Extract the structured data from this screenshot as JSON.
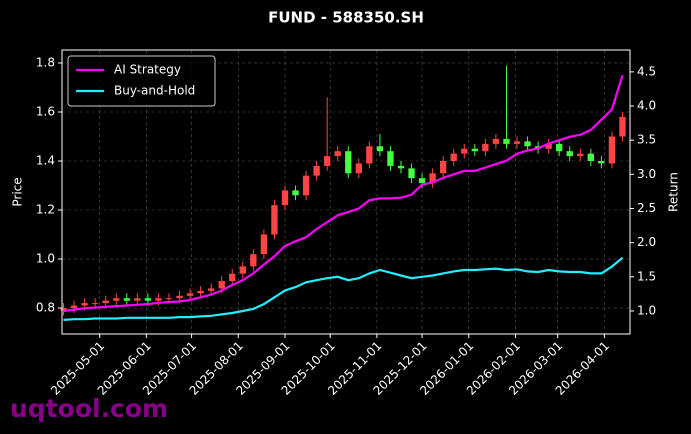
{
  "chart_data": {
    "type": "candlestick",
    "title": "FUND - 588350.SH",
    "ylabel": "Price",
    "y2label": "Return",
    "watermark": "uqtool.com",
    "up_color": "#ff4444",
    "down_color": "#44ff44",
    "grid": true,
    "legend": "upper left",
    "x": [
      "2025-04-07",
      "2025-04-14",
      "2025-04-21",
      "2025-04-28",
      "2025-05-05",
      "2025-05-12",
      "2025-05-19",
      "2025-05-26",
      "2025-06-02",
      "2025-06-09",
      "2025-06-16",
      "2025-06-23",
      "2025-06-30",
      "2025-07-07",
      "2025-07-14",
      "2025-07-21",
      "2025-07-28",
      "2025-08-04",
      "2025-08-11",
      "2025-08-18",
      "2025-08-25",
      "2025-09-01",
      "2025-09-08",
      "2025-09-15",
      "2025-09-22",
      "2025-09-29",
      "2025-10-06",
      "2025-10-13",
      "2025-10-20",
      "2025-10-27",
      "2025-11-03",
      "2025-11-10",
      "2025-11-17",
      "2025-11-24",
      "2025-12-01",
      "2025-12-08",
      "2025-12-15",
      "2025-12-22",
      "2025-12-29",
      "2026-01-05",
      "2026-01-12",
      "2026-01-19",
      "2026-01-26",
      "2026-02-02",
      "2026-02-09",
      "2026-02-16",
      "2026-02-23",
      "2026-03-02",
      "2026-03-09",
      "2026-03-16",
      "2026-03-23",
      "2026-03-30",
      "2026-04-06",
      "2026-04-13"
    ],
    "open": [
      0.79,
      0.8,
      0.81,
      0.82,
      0.82,
      0.83,
      0.84,
      0.83,
      0.84,
      0.83,
      0.84,
      0.84,
      0.85,
      0.86,
      0.87,
      0.88,
      0.91,
      0.94,
      0.97,
      1.02,
      1.1,
      1.22,
      1.28,
      1.26,
      1.34,
      1.38,
      1.42,
      1.44,
      1.35,
      1.39,
      1.46,
      1.44,
      1.38,
      1.37,
      1.33,
      1.31,
      1.35,
      1.4,
      1.43,
      1.45,
      1.44,
      1.47,
      1.49,
      1.47,
      1.48,
      1.46,
      1.45,
      1.47,
      1.44,
      1.42,
      1.43,
      1.4,
      1.39,
      1.5
    ],
    "close": [
      0.8,
      0.81,
      0.82,
      0.82,
      0.83,
      0.84,
      0.83,
      0.84,
      0.83,
      0.84,
      0.84,
      0.85,
      0.86,
      0.87,
      0.88,
      0.91,
      0.94,
      0.97,
      1.02,
      1.1,
      1.22,
      1.28,
      1.26,
      1.34,
      1.38,
      1.42,
      1.44,
      1.35,
      1.39,
      1.46,
      1.44,
      1.38,
      1.37,
      1.33,
      1.31,
      1.35,
      1.4,
      1.43,
      1.45,
      1.44,
      1.47,
      1.49,
      1.47,
      1.48,
      1.46,
      1.45,
      1.47,
      1.44,
      1.42,
      1.43,
      1.4,
      1.39,
      1.5,
      1.58
    ],
    "high": [
      0.82,
      0.83,
      0.84,
      0.84,
      0.85,
      0.86,
      0.86,
      0.86,
      0.86,
      0.86,
      0.86,
      0.87,
      0.88,
      0.89,
      0.9,
      0.93,
      0.96,
      0.99,
      1.04,
      1.12,
      1.24,
      1.3,
      1.3,
      1.36,
      1.4,
      1.66,
      1.46,
      1.46,
      1.41,
      1.48,
      1.51,
      1.46,
      1.4,
      1.39,
      1.35,
      1.37,
      1.42,
      1.45,
      1.47,
      1.47,
      1.49,
      1.51,
      1.79,
      1.5,
      1.5,
      1.48,
      1.49,
      1.49,
      1.46,
      1.45,
      1.45,
      1.42,
      1.52,
      1.6
    ],
    "low": [
      0.77,
      0.78,
      0.79,
      0.8,
      0.8,
      0.81,
      0.81,
      0.81,
      0.81,
      0.81,
      0.82,
      0.82,
      0.83,
      0.84,
      0.85,
      0.86,
      0.89,
      0.92,
      0.95,
      1.0,
      1.08,
      1.2,
      1.24,
      1.24,
      1.32,
      1.36,
      1.4,
      1.33,
      1.33,
      1.37,
      1.42,
      1.36,
      1.35,
      1.31,
      1.29,
      1.29,
      1.33,
      1.38,
      1.41,
      1.42,
      1.42,
      1.45,
      1.45,
      1.45,
      1.44,
      1.43,
      1.43,
      1.42,
      1.4,
      1.4,
      1.38,
      1.37,
      1.37,
      1.48
    ],
    "series": [
      {
        "name": "AI Strategy",
        "color": "#ff00ff",
        "axis": "y2",
        "values": [
          1.0,
          1.02,
          1.04,
          1.05,
          1.06,
          1.07,
          1.08,
          1.09,
          1.1,
          1.12,
          1.13,
          1.14,
          1.16,
          1.2,
          1.24,
          1.3,
          1.38,
          1.45,
          1.55,
          1.68,
          1.8,
          1.95,
          2.02,
          2.08,
          2.2,
          2.3,
          2.4,
          2.45,
          2.5,
          2.62,
          2.65,
          2.65,
          2.66,
          2.7,
          2.85,
          2.88,
          2.95,
          3.0,
          3.05,
          3.05,
          3.1,
          3.15,
          3.2,
          3.3,
          3.35,
          3.38,
          3.45,
          3.5,
          3.55,
          3.58,
          3.65,
          3.8,
          3.95,
          4.45
        ]
      },
      {
        "name": "Buy-and-Hold",
        "color": "#22eeff",
        "axis": "y2",
        "values": [
          0.87,
          0.88,
          0.88,
          0.89,
          0.89,
          0.89,
          0.9,
          0.9,
          0.9,
          0.9,
          0.9,
          0.91,
          0.91,
          0.92,
          0.93,
          0.95,
          0.97,
          1.0,
          1.03,
          1.1,
          1.2,
          1.3,
          1.35,
          1.42,
          1.45,
          1.48,
          1.5,
          1.45,
          1.48,
          1.55,
          1.6,
          1.56,
          1.52,
          1.48,
          1.5,
          1.52,
          1.55,
          1.58,
          1.6,
          1.6,
          1.61,
          1.62,
          1.6,
          1.61,
          1.58,
          1.57,
          1.6,
          1.58,
          1.57,
          1.57,
          1.55,
          1.55,
          1.65,
          1.78
        ]
      }
    ],
    "xlim": [
      "2025-04-06",
      "2026-04-18"
    ],
    "xticks": [
      "2025-05-01",
      "2025-06-01",
      "2025-07-01",
      "2025-08-01",
      "2025-09-01",
      "2025-10-01",
      "2025-11-01",
      "2025-12-01",
      "2026-01-01",
      "2026-02-01",
      "2026-03-01",
      "2026-04-01"
    ],
    "ylim": [
      0.694,
      1.853
    ],
    "yticks": [
      0.8,
      {
        "value": 1,
        "label": "1.0"
      },
      1.2,
      1.4,
      1.6,
      1.8
    ],
    "y2lim": [
      0.663,
      4.82
    ],
    "y2ticks": [
      {
        "value": 1,
        "label": "1.0"
      },
      1.5,
      {
        "value": 2,
        "label": "2.0"
      },
      2.5,
      {
        "value": 3,
        "label": "3.0"
      },
      3.5,
      {
        "value": 4,
        "label": "4.0"
      },
      4.5
    ]
  }
}
